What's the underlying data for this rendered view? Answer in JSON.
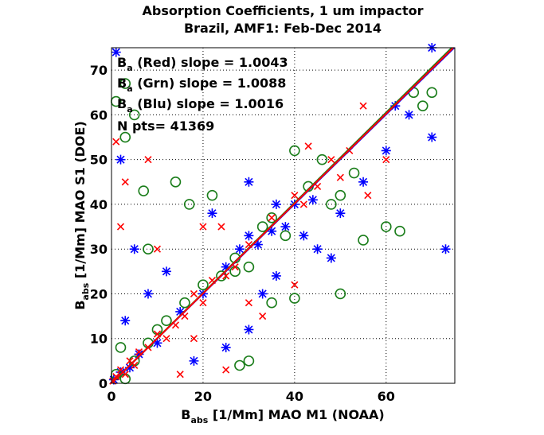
{
  "chart_data": {
    "type": "scatter",
    "title": [
      "Absorption Coefficients, 1 um impactor",
      "Brazil, AMF1: Feb-Dec 2014"
    ],
    "xlabel": {
      "main": "B",
      "sub": "abs",
      "rest": " [1/Mm] MAO M1 (NOAA)"
    },
    "ylabel": {
      "main": "B",
      "sub": "abs",
      "rest": " [1/Mm] MAO S1 (DOE)"
    },
    "xlim": [
      0,
      75
    ],
    "ylim": [
      0,
      75
    ],
    "xticks": [
      0,
      20,
      40,
      60
    ],
    "yticks": [
      0,
      10,
      20,
      30,
      40,
      50,
      60,
      70
    ],
    "grid": true,
    "annotation": {
      "symbol": "B",
      "sub": "a",
      "open": " (",
      "close": ") slope = "
    },
    "n_points_label": "N pts= ",
    "n_points": 41369,
    "series": [
      {
        "name": "Blu",
        "color": "#0000ff",
        "marker": "star",
        "slope": 1.0016,
        "x": [
          0.5,
          2,
          4,
          6,
          10,
          15,
          20,
          25,
          28,
          30,
          32,
          35,
          36,
          38,
          40,
          42,
          45,
          48,
          33,
          30,
          25,
          55,
          60,
          65,
          73,
          70,
          70,
          5,
          2,
          1,
          8,
          12,
          22,
          30,
          18,
          36,
          3,
          50,
          62,
          44
        ],
        "y": [
          0.8,
          2.5,
          3.5,
          6.5,
          9,
          16,
          20,
          26,
          30,
          33,
          31,
          34,
          40,
          35,
          40,
          33,
          30,
          28,
          20,
          12,
          8,
          45,
          52,
          60,
          30,
          75,
          55,
          30,
          50,
          74,
          20,
          25,
          38,
          45,
          5,
          24,
          14,
          38,
          62,
          41
        ]
      },
      {
        "name": "Grn",
        "color": "#1a7d1a",
        "marker": "circle",
        "slope": 1.0088,
        "x": [
          1,
          3,
          5,
          8,
          12,
          16,
          20,
          24,
          27,
          30,
          33,
          35,
          38,
          40,
          46,
          50,
          53,
          55,
          60,
          63,
          66,
          70,
          68,
          43,
          48,
          8,
          3,
          3,
          1,
          7,
          14,
          17,
          22,
          27,
          30,
          28,
          40,
          50,
          35,
          10,
          2,
          5
        ],
        "y": [
          2,
          1,
          5,
          9,
          14,
          18,
          22,
          24,
          28,
          26,
          35,
          37,
          33,
          52,
          50,
          42,
          47,
          32,
          35,
          34,
          65,
          65,
          62,
          44,
          40,
          30,
          55,
          67,
          63,
          43,
          45,
          40,
          42,
          25,
          5,
          4,
          19,
          20,
          18,
          12,
          8,
          60
        ]
      },
      {
        "name": "Red",
        "color": "#ff0000",
        "marker": "x",
        "slope": 1.0043,
        "x": [
          0.3,
          1,
          2,
          3,
          4,
          5,
          6,
          8,
          10,
          12,
          14,
          16,
          18,
          20,
          22,
          25,
          27,
          30,
          35,
          40,
          42,
          45,
          48,
          50,
          55,
          43,
          52,
          56,
          24,
          20,
          2,
          1,
          3,
          10,
          8,
          40,
          33,
          30,
          18,
          25,
          15,
          60
        ],
        "y": [
          0.5,
          1.5,
          3,
          2,
          5,
          4,
          7,
          8,
          11,
          10,
          13,
          15,
          20,
          18,
          23,
          24,
          26,
          31,
          37,
          42,
          40,
          44,
          50,
          46,
          62,
          53,
          52,
          42,
          35,
          35,
          35,
          54,
          45,
          30,
          50,
          22,
          15,
          18,
          10,
          3,
          2,
          50
        ]
      }
    ],
    "annotation_order": [
      2,
      1,
      0
    ]
  }
}
